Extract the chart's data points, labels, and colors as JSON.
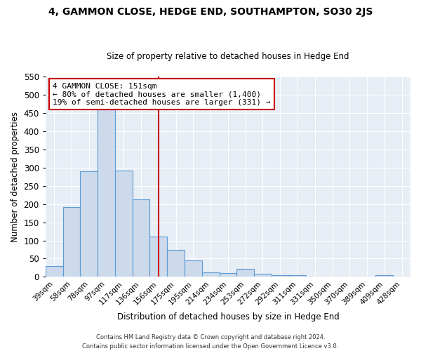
{
  "title1": "4, GAMMON CLOSE, HEDGE END, SOUTHAMPTON, SO30 2JS",
  "title2": "Size of property relative to detached houses in Hedge End",
  "xlabel": "Distribution of detached houses by size in Hedge End",
  "ylabel": "Number of detached properties",
  "bar_color": "#ccdaeb",
  "bar_edge_color": "#5b9bd5",
  "background_color": "#e8eef5",
  "grid_color": "#ffffff",
  "categories": [
    "39sqm",
    "58sqm",
    "78sqm",
    "97sqm",
    "117sqm",
    "136sqm",
    "156sqm",
    "175sqm",
    "195sqm",
    "214sqm",
    "234sqm",
    "253sqm",
    "272sqm",
    "292sqm",
    "311sqm",
    "331sqm",
    "350sqm",
    "370sqm",
    "389sqm",
    "409sqm",
    "428sqm"
  ],
  "values": [
    30,
    192,
    290,
    460,
    292,
    212,
    110,
    75,
    46,
    13,
    11,
    22,
    9,
    5,
    5,
    0,
    0,
    0,
    0,
    5,
    0
  ],
  "vline_index": 6,
  "vline_color": "#cc0000",
  "ylim": [
    0,
    550
  ],
  "yticks": [
    0,
    50,
    100,
    150,
    200,
    250,
    300,
    350,
    400,
    450,
    500,
    550
  ],
  "annotation_title": "4 GAMMON CLOSE: 151sqm",
  "annotation_line1": "← 80% of detached houses are smaller (1,400)",
  "annotation_line2": "19% of semi-detached houses are larger (331) →",
  "footer1": "Contains HM Land Registry data © Crown copyright and database right 2024.",
  "footer2": "Contains public sector information licensed under the Open Government Licence v3.0."
}
